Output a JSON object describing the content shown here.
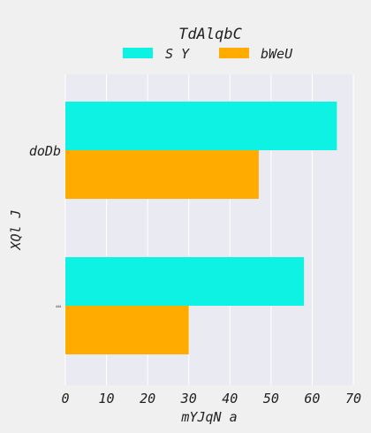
{
  "chart_data": {
    "type": "bar",
    "orientation": "horizontal",
    "categories": [
      "doDb",
      "ᴧᴧᴧ"
    ],
    "series": [
      {
        "name": "S Y",
        "color": "#0ef2e3",
        "values": [
          66,
          58
        ]
      },
      {
        "name": "bWeU",
        "color": "#ffab00",
        "values": [
          47,
          30
        ]
      }
    ],
    "legend": {
      "title": "TdAlqbC",
      "placement": "top-center"
    },
    "xlabel": "mYJqN a",
    "ylabel": "XQl J",
    "xlim": [
      0,
      70
    ],
    "xticks": [
      0,
      10,
      20,
      30,
      40,
      50,
      60,
      70
    ],
    "grid": true,
    "plot_background": "#eaeaf2"
  }
}
